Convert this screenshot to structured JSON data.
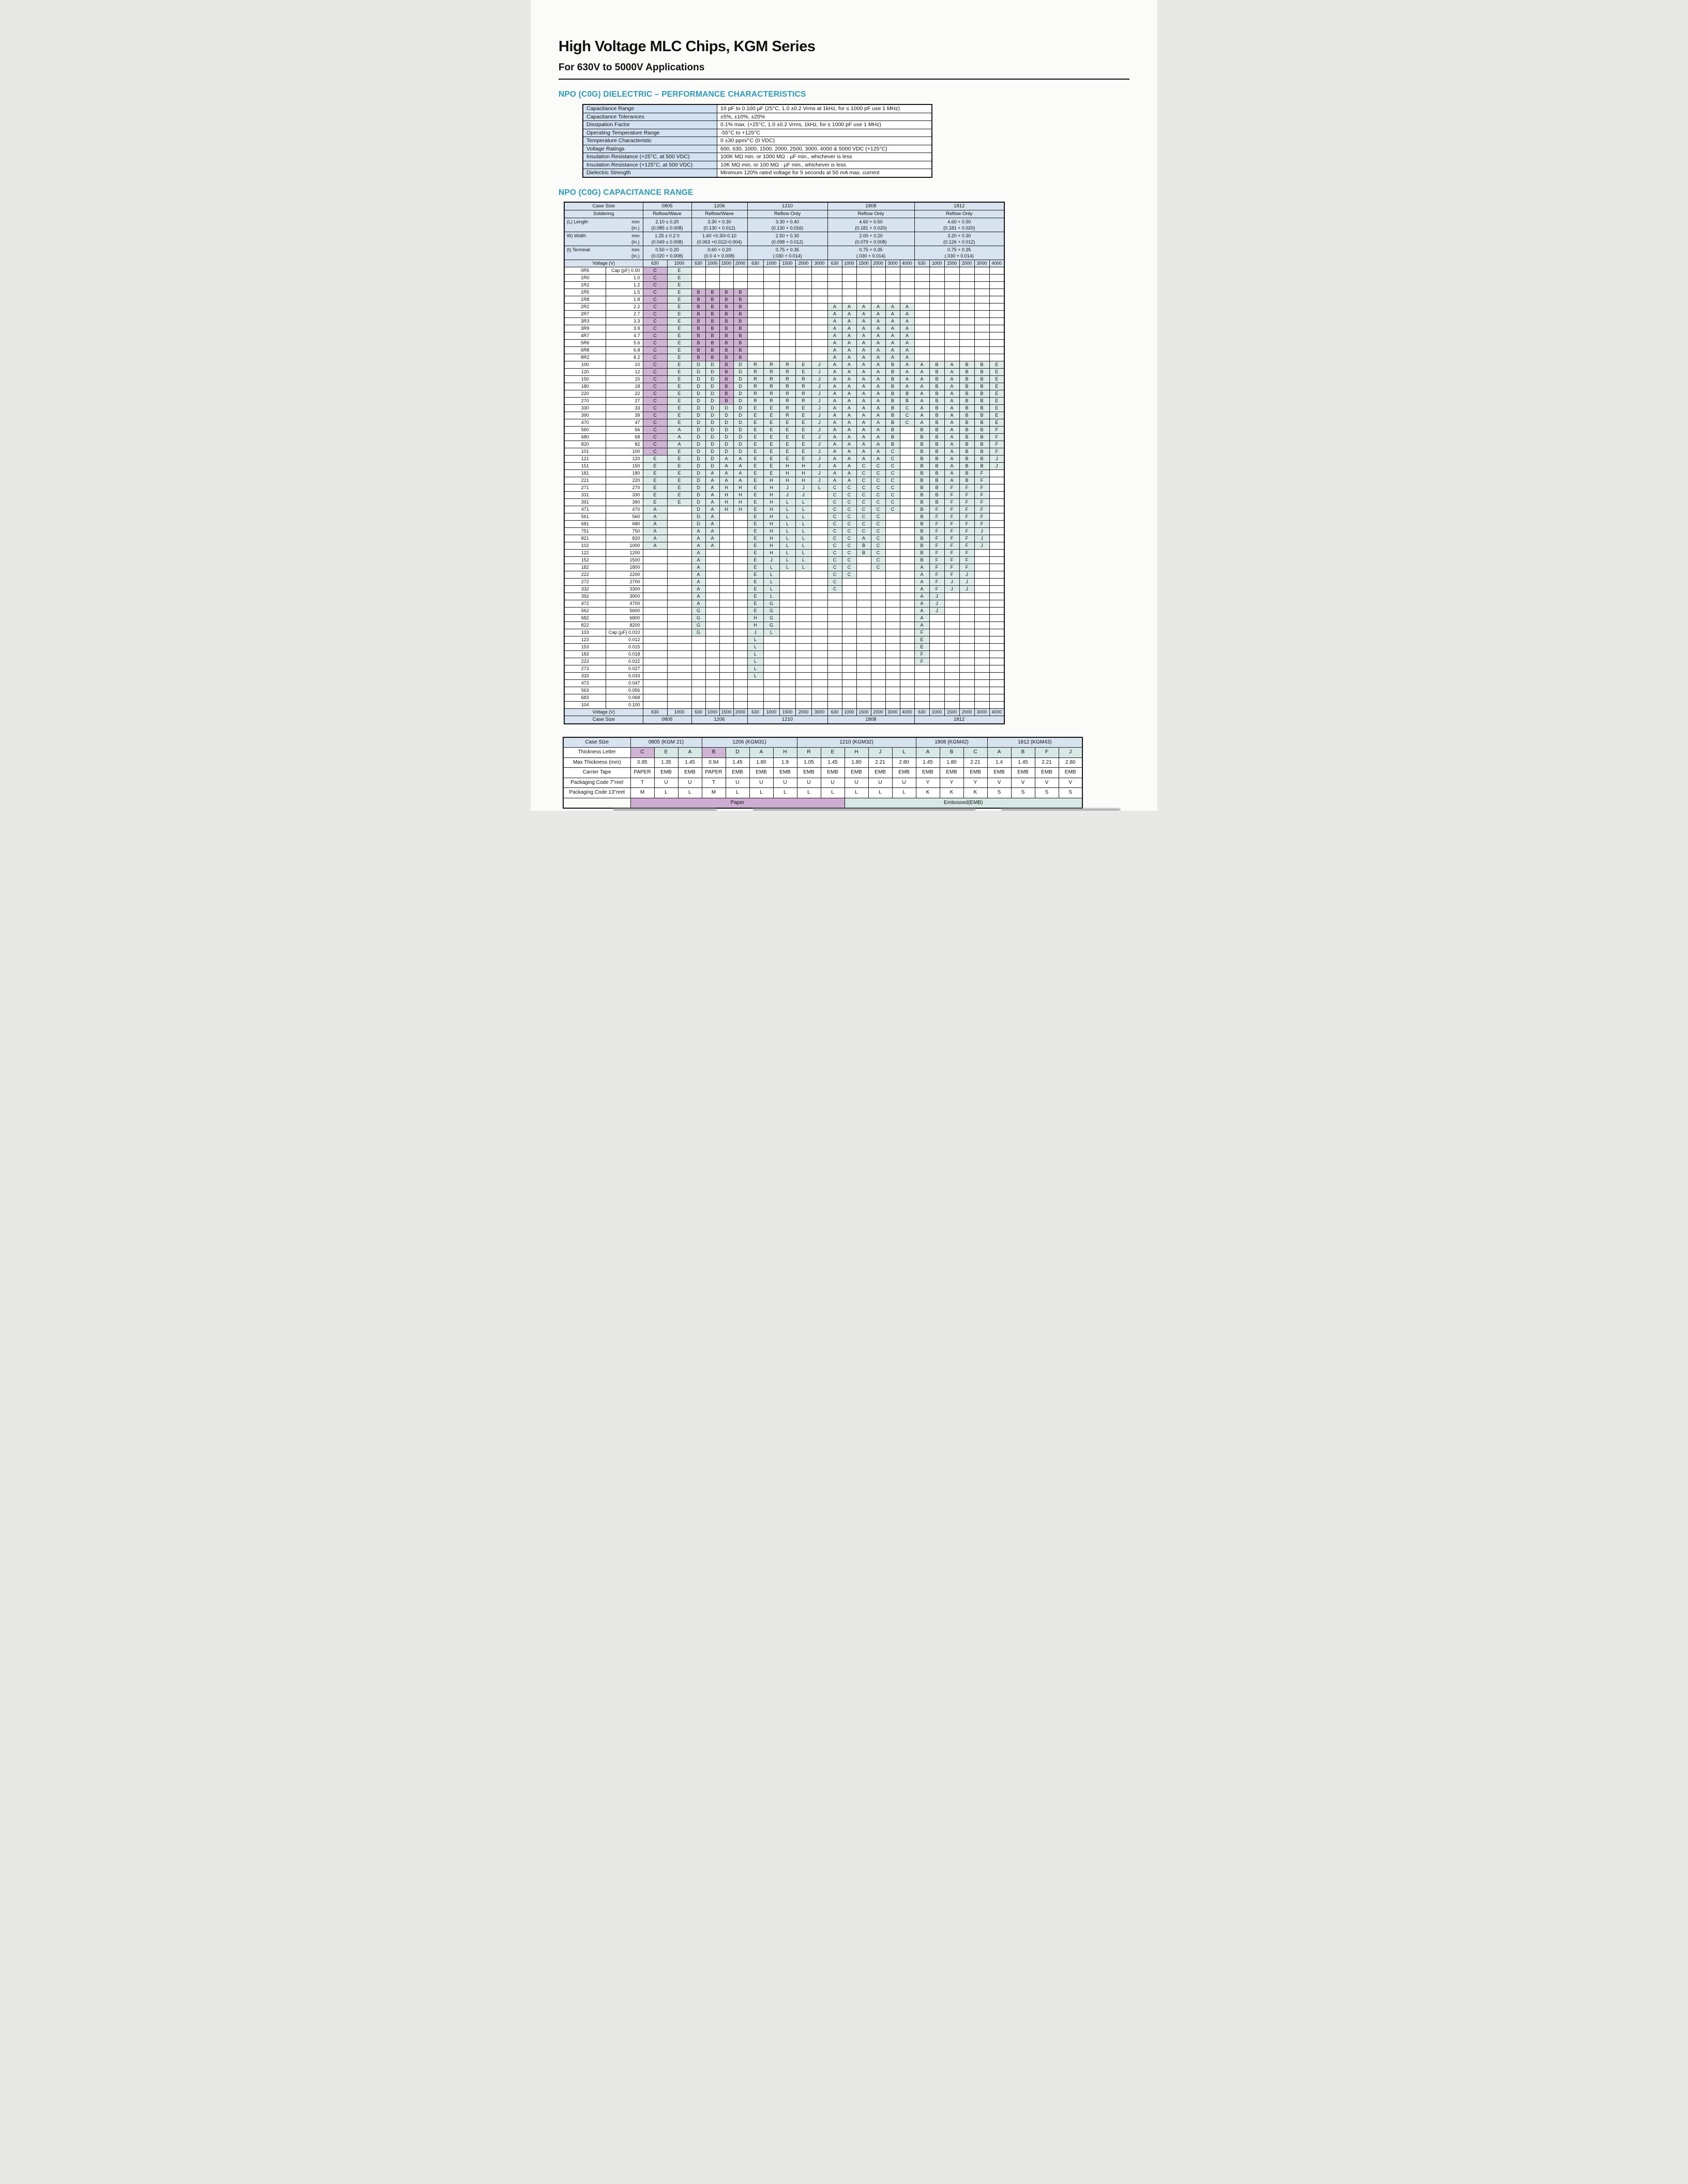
{
  "page": {
    "title": "High Voltage MLC Chips, KGM Series",
    "subtitle": "For 630V to 5000V Applications",
    "section1_heading": "NPO (C0G) DIELECTRIC – PERFORMANCE CHARACTERISTICS",
    "section2_heading": "NPO (C0G) CAPACITANCE RANGE"
  },
  "colors": {
    "heading_teal": "#2a9dbf",
    "header_blue": "#d8e3f0",
    "cell_teal": "#dcebe7",
    "cell_purple": "#d0b4d4",
    "paper_band_purple": "#cdaed2",
    "emb_band_teal": "#d7e9e5"
  },
  "performance_table": {
    "rows": [
      [
        "Capacitance Range",
        "10 pF to 0.100 µF (25°C, 1.0 ±0.2 Vrms at 1kHz, for ≤ 1000 pF use 1 MHz)"
      ],
      [
        "Capacitance Tolerances",
        "±5%, ±10%, ±20%"
      ],
      [
        "Dissipation Factor",
        "0.1% max. (+25°C, 1.0 ±0.2 Vrms, 1kHz, for ≤ 1000 pF use 1 MHz)"
      ],
      [
        "Operating Temperature Range",
        "-55°C to +125°C"
      ],
      [
        "Temperature Characteristic",
        "0 ±30 ppm/°C (0 VDC)"
      ],
      [
        "Voltage Ratings",
        "600, 630, 1000, 1500, 2000, 2500, 3000, 4000 & 5000 VDC (+125°C)"
      ],
      [
        "Insulation Resistance (+25°C, at 500 VDC)",
        "100K MΩ min. or 1000 MΩ · µF min., whichever is less"
      ],
      [
        "Insulation Resistance (+125°C, at 500 VDC)",
        "10K MΩ min. or 100 MΩ · µF min., whichever is less"
      ],
      [
        "Dielectric Strength",
        "Minimum 120% rated voltage for 5 seconds at 50 mA max. current"
      ]
    ]
  },
  "capacitance_table": {
    "labels": {
      "case_size": "Case Size",
      "soldering": "Soldering",
      "voltage": "Voltage (V)"
    },
    "groups": [
      {
        "name": "0805",
        "soldering": "Reflow/Wave",
        "voltages": [
          "630",
          "1000"
        ]
      },
      {
        "name": "1206",
        "soldering": "Reflow/Wave",
        "voltages": [
          "630",
          "1000",
          "1500",
          "2000"
        ]
      },
      {
        "name": "1210",
        "soldering": "Reflow Only",
        "voltages": [
          "630",
          "1000",
          "1500",
          "2000",
          "3000"
        ]
      },
      {
        "name": "1808",
        "soldering": "Reflow Only",
        "voltages": [
          "630",
          "1000",
          "1500",
          "2000",
          "3000",
          "4000"
        ]
      },
      {
        "name": "1812",
        "soldering": "Reflow Only",
        "voltages": [
          "630",
          "1000",
          "1500",
          "2000",
          "3000",
          "4000"
        ]
      }
    ],
    "dim_rows": [
      {
        "label": "(L) Length",
        "unit_mm": "mm",
        "unit_in": "(in.)",
        "mm": [
          "2.10 ± 0.20",
          "3.30 + 0.30",
          "3.30 + 0.40",
          "4.60 + 0.50",
          "4.60 + 0.50"
        ],
        "in": [
          "(0.085 ± 0.008)",
          "(0.130 + 0.012)",
          "(0.130 + 0.016)",
          "(0.181 + 0.020)",
          "(0.181 + 0.020)"
        ]
      },
      {
        "label": "W) Width",
        "unit_mm": "mm",
        "unit_in": "(in.)",
        "mm": [
          "1.25 ± 0.2 0",
          "1.60 +0.30/-0.10",
          "2.50 + 0.30",
          "2.00 + 0.20",
          "3.20 + 0.30"
        ],
        "in": [
          "(0.049 ± 0.008)",
          "(0.063 +0.012/-0.004)",
          "(0.098 + 0.012)",
          "(0.079 + 0.008)",
          "(0.126 + 0.012)"
        ]
      },
      {
        "label": "(t) Terminal",
        "unit_mm": "mm",
        "unit_in": "(in.)",
        "mm": [
          "0.50 + 0.20",
          "0.60 + 0.20",
          "0.75 + 0.35",
          "0.75 + 0.35",
          "0.75 + 0.35"
        ],
        "in": [
          "(0.020 + 0.008)",
          "(0.0 4 + 0.008)",
          "(.030 + 0.014)",
          "(.030 + 0.014)",
          "(.030 + 0.014)"
        ]
      }
    ],
    "cap_unit_prefix_pf": "Cap (pF)",
    "cap_unit_prefix_uf": "Cap (µF)",
    "rows": [
      {
        "code": "0R5",
        "cap": "0.50",
        "prefix": "Cap (pF)",
        "cells": "C,E"
      },
      {
        "code": "1R0",
        "cap": "1.0",
        "cells": "C,E"
      },
      {
        "code": "1R2",
        "cap": "1.2",
        "cells": "C,E"
      },
      {
        "code": "1R5",
        "cap": "1.5",
        "cells": "C,E,B,B,B,B"
      },
      {
        "code": "1R8",
        "cap": "1.8",
        "cells": "C,E,B,B,B,B"
      },
      {
        "code": "2R2",
        "cap": "2.2",
        "cells": "C,E,B,B,B,B,,,,,,A,A,A,A,A,A"
      },
      {
        "code": "2R7",
        "cap": "2.7",
        "cells": "C,E,B,B,B,B,,,,,,A,A,A,A,A,A"
      },
      {
        "code": "3R3",
        "cap": "3.3",
        "cells": "C,E,B,B,B,B,,,,,,A,A,A,A,A,A"
      },
      {
        "code": "3R9",
        "cap": "3.9",
        "cells": "C,E,B,B,B,B,,,,,,A,A,A,A,A,A"
      },
      {
        "code": "4R7",
        "cap": "4.7",
        "cells": "C,E,B,B,B,B,,,,,,A,A,A,A,A,A"
      },
      {
        "code": "5R6",
        "cap": "5.6",
        "cells": "C,E,B,B,B,B,,,,,,A,A,A,A,A,A"
      },
      {
        "code": "6R8",
        "cap": "6.8",
        "cells": "C,E,B,B,B,B,,,,,,A,A,A,A,A,A"
      },
      {
        "code": "8R2",
        "cap": "8.2",
        "cells": "C,E,B,B,B,B,,,,,,A,A,A,A,A,A"
      },
      {
        "code": "100",
        "cap": "10",
        "cells": "C,E,D,D,B,D,R,R,R,E,J,A,A,A,A,B,A,A,B,A,B,B,E"
      },
      {
        "code": "120",
        "cap": "12",
        "cells": "C,E,D,D,B,D,R,R,R,E,J,A,A,A,A,B,A,A,B,A,B,B,E"
      },
      {
        "code": "150",
        "cap": "15",
        "cells": "C,E,D,D,B,D,R,R,R,R,J,A,A,A,A,B,A,A,B,A,B,B,E"
      },
      {
        "code": "180",
        "cap": "18",
        "cells": "C,E,D,D,B,D,R,R,R,R,J,A,A,A,A,B,A,A,B,A,B,B,E"
      },
      {
        "code": "220",
        "cap": "22",
        "cells": "C,E,D,D,B,D,R,R,R,R,J,A,A,A,A,B,B,A,B,A,B,B,E"
      },
      {
        "code": "270",
        "cap": "27",
        "cells": "C,E,D,D,B,D,R,R,R,R,J,A,A,A,A,B,B,A,B,A,B,B,E"
      },
      {
        "code": "330",
        "cap": "33",
        "cells": "C,E,D,D,D,D,E,E,R,E,J,A,A,A,A,B,C,A,B,A,B,B,E"
      },
      {
        "code": "390",
        "cap": "39",
        "cells": "C,E,D,D,D,D,E,E,R,E,J,A,A,A,A,B,C,A,B,A,B,B,E"
      },
      {
        "code": "470",
        "cap": "47",
        "cells": "C,E,D,D,D,D,E,E,E,E,J,A,A,A,A,B,C,A,B,A,B,B,E"
      },
      {
        "code": "560",
        "cap": "56",
        "cells": "C,A,D,D,D,D,E,E,E,E,J,A,A,A,A,B,,B,B,A,B,B,F"
      },
      {
        "code": "680",
        "cap": "68",
        "cells": "C,A,D,D,D,D,E,E,E,E,J,A,A,A,A,B,,B,B,A,B,B,F"
      },
      {
        "code": "820",
        "cap": "82",
        "cells": "C,A,D,D,D,D,E,E,E,E,J,A,A,A,A,B,,B,B,A,B,B,F"
      },
      {
        "code": "101",
        "cap": "100",
        "cells": "C,E,D,D,D,D,E,E,E,E,J,A,A,A,A,C,,B,B,A,B,B,F"
      },
      {
        "code": "121",
        "cap": "120",
        "cells": "E,E,D,D,A,A,E,E,E,E,J,A,A,A,A,C,,B,B,A,B,B,J"
      },
      {
        "code": "151",
        "cap": "150",
        "cells": "E,E,D,D,A,A,E,E,H,H,J,A,A,C,C,C,,B,B,A,B,B,J"
      },
      {
        "code": "181",
        "cap": "180",
        "cells": "E,E,D,A,A,A,E,E,H,H,J,A,A,C,C,C,,B,B,A,B,F"
      },
      {
        "code": "221",
        "cap": "220",
        "cells": "E,E,D,A,A,A,E,H,H,H,J,A,A,C,C,C,,B,B,A,B,F"
      },
      {
        "code": "271",
        "cap": "270",
        "cells": "E,E,D,A,H,H,E,H,J,J,L,C,C,C,C,C,,B,B,F,F,F"
      },
      {
        "code": "331",
        "cap": "330",
        "cells": "E,E,D,A,H,H,E,H,J,J,,C,C,C,C,C,,B,B,F,F,F"
      },
      {
        "code": "391",
        "cap": "390",
        "cells": "E,E,D,A,H,H,E,H,L,L,,C,C,C,C,C,,B,B,F,F,F"
      },
      {
        "code": "471",
        "cap": "470",
        "cells": "A,,D,A,H,H,E,H,L,L,,C,C,C,C,C,,B,F,F,F,F"
      },
      {
        "code": "561",
        "cap": "560",
        "cells": "A,,D,A,,,E,H,L,L,,C,C,C,C,,,B,F,F,F,F"
      },
      {
        "code": "681",
        "cap": "680",
        "cells": "A,,D,A,,,E,H,L,L,,C,C,C,C,,,B,F,F,F,F"
      },
      {
        "code": "751",
        "cap": "750",
        "cells": "A,,A,A,,,E,H,L,L,,C,C,C,C,,,B,F,F,F,J"
      },
      {
        "code": "821",
        "cap": "820",
        "cells": "A,,A,A,,,E,H,L,L,,C,C,A,C,,,B,F,F,F,J"
      },
      {
        "code": "102",
        "cap": "1000",
        "cells": "A,,A,A,,,E,H,L,L,,C,C,B,C,,,B,F,F,F,J"
      },
      {
        "code": "122",
        "cap": "1200",
        "cells": ",,A,,,,E,H,L,L,,C,C,B,C,,,B,F,F,F"
      },
      {
        "code": "152",
        "cap": "1500",
        "cells": ",,A,,,,E,J,L,L,,C,C,,C,,,B,F,F,F"
      },
      {
        "code": "182",
        "cap": "1800",
        "cells": ",,A,,,,E,L,L,L,,C,C,,C,,,A,F,F,F"
      },
      {
        "code": "222",
        "cap": "2200",
        "cells": ",,A,,,,E,L,,,,C,C,,,,,A,F,F,J"
      },
      {
        "code": "272",
        "cap": "2700",
        "cells": ",,A,,,,E,L,,,,C,,,,,,A,F,J,J"
      },
      {
        "code": "332",
        "cap": "3300",
        "cells": ",,A,,,,E,L,,,,C,,,,,,A,F,J,J"
      },
      {
        "code": "392",
        "cap": "3900",
        "cells": ",,A,,,,E,L,,,,,,,,,,A,J"
      },
      {
        "code": "472",
        "cap": "4700",
        "cells": ",,A,,,,E,G,,,,,,,,,,A,J"
      },
      {
        "code": "562",
        "cap": "5600",
        "cells": ",,G,,,,E,G,,,,,,,,,,A,J"
      },
      {
        "code": "682",
        "cap": "6800",
        "cells": ",,G,,,,H,G,,,,,,,,,,A"
      },
      {
        "code": "822",
        "cap": "8200",
        "cells": ",,G,,,,H,G,,,,,,,,,,A"
      },
      {
        "code": "103",
        "cap": "0.010",
        "prefix": "Cap (µF)",
        "cells": ",,G,,,,J,L,,,,,,,,,,F"
      },
      {
        "code": "123",
        "cap": "0.012",
        "cells": ",,,,,,L,,,,,,,,,,,E"
      },
      {
        "code": "153",
        "cap": "0.015",
        "cells": ",,,,,,L,,,,,,,,,,,E"
      },
      {
        "code": "183",
        "cap": "0.018",
        "cells": ",,,,,,L,,,,,,,,,,,F"
      },
      {
        "code": "223",
        "cap": "0.022",
        "cells": ",,,,,,L,,,,,,,,,,,F"
      },
      {
        "code": "273",
        "cap": "0.027",
        "cells": ",,,,,,L"
      },
      {
        "code": "333",
        "cap": "0.033",
        "cells": ",,,,,,L"
      },
      {
        "code": "473",
        "cap": "0.047",
        "cells": ""
      },
      {
        "code": "563",
        "cap": "0.056",
        "cells": ""
      },
      {
        "code": "683",
        "cap": "0.068",
        "cells": ""
      },
      {
        "code": "104",
        "cap": "0.100",
        "cells": ""
      }
    ]
  },
  "packaging_table": {
    "row_labels": [
      "Case Size",
      "Thickness Letter",
      "Max Thickness (mm)",
      "Carrier Tape",
      "Packaging Code 7\"reel",
      "Packaging Code 13\"reel"
    ],
    "groups": [
      {
        "name": "0805 (KGM 21)",
        "letters": [
          "C",
          "E",
          "A"
        ],
        "thickness": [
          "0.95",
          "1.35",
          "1.45"
        ],
        "tape": [
          "PAPER",
          "EMB",
          "EMB"
        ],
        "reel7": [
          "T",
          "U",
          "U"
        ],
        "reel13": [
          "M",
          "L",
          "L"
        ]
      },
      {
        "name": "1206 (KGM31)",
        "letters": [
          "B",
          "D",
          "A",
          "H"
        ],
        "thickness": [
          "0.94",
          "1.45",
          "1.80",
          "1.9"
        ],
        "tape": [
          "PAPER",
          "EMB",
          "EMB",
          "EMB"
        ],
        "reel7": [
          "T",
          "U",
          "U",
          "U"
        ],
        "reel13": [
          "M",
          "L",
          "L",
          "L"
        ]
      },
      {
        "name": "1210 (KGM32)",
        "letters": [
          "R",
          "E",
          "H",
          "J",
          "L"
        ],
        "thickness": [
          "1.05",
          "1.45",
          "1.80",
          "2.21",
          "2.80"
        ],
        "tape": [
          "EMB",
          "EMB",
          "EMB",
          "EMB",
          "EMB"
        ],
        "reel7": [
          "U",
          "U",
          "U",
          "U",
          "U"
        ],
        "reel13": [
          "L",
          "L",
          "L",
          "L",
          "L"
        ]
      },
      {
        "name": "1808 (KGM42)",
        "letters": [
          "A",
          "B",
          "C"
        ],
        "thickness": [
          "1.45",
          "1.80",
          "2.21"
        ],
        "tape": [
          "EMB",
          "EMB",
          "EMB"
        ],
        "reel7": [
          "Y",
          "Y",
          "Y"
        ],
        "reel13": [
          "K",
          "K",
          "K"
        ]
      },
      {
        "name": "1812 (KGM43)",
        "letters": [
          "A",
          "B",
          "F",
          "J"
        ],
        "thickness": [
          "1.4",
          "1.45",
          "2.21",
          "2.80"
        ],
        "tape": [
          "EMB",
          "EMB",
          "EMB",
          "EMB"
        ],
        "reel7": [
          "V",
          "V",
          "V",
          "V"
        ],
        "reel13": [
          "S",
          "S",
          "S",
          "S"
        ]
      }
    ],
    "paper_band_label": "Paper",
    "emb_band_label": "Embossed(EMB)",
    "paper_band_span": 9,
    "emb_band_span": 10
  }
}
